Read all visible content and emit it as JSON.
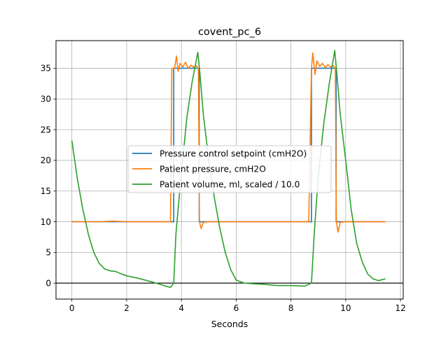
{
  "chart_data": {
    "type": "line",
    "title": "covent_pc_6",
    "xlabel": "Seconds",
    "ylabel": "",
    "xlim": [
      -0.58,
      12.1
    ],
    "ylim": [
      -2.6,
      39.5
    ],
    "xticks": [
      "0",
      "2",
      "4",
      "6",
      "8",
      "10",
      "12"
    ],
    "yticks": [
      "0",
      "5",
      "10",
      "15",
      "20",
      "25",
      "30",
      "35"
    ],
    "grid": true,
    "zero_line": true,
    "legend_position": "center",
    "series": [
      {
        "name": "Pressure control setpoint (cmH2O)",
        "color": "#1f77b4",
        "x": [
          0.0,
          3.6,
          3.6,
          3.72,
          3.72,
          4.6,
          4.6,
          4.65,
          4.65,
          5.5,
          8.6,
          8.6,
          8.75,
          8.75,
          9.6,
          9.6,
          9.65,
          9.65,
          11.45
        ],
        "y": [
          10,
          10,
          10,
          10,
          35,
          35,
          35,
          35,
          10,
          10,
          10,
          10,
          10,
          35,
          35,
          35,
          35,
          10,
          10
        ]
      },
      {
        "name": "Patient pressure, cmH2O",
        "color": "#ff7f0e",
        "x": [
          0.0,
          0.5,
          1.0,
          1.5,
          2.0,
          2.5,
          3.0,
          3.5,
          3.6,
          3.65,
          3.75,
          3.82,
          3.88,
          3.95,
          4.05,
          4.15,
          4.25,
          4.35,
          4.45,
          4.55,
          4.62,
          4.66,
          4.72,
          4.8,
          5.0,
          5.5,
          6.0,
          6.5,
          7.0,
          7.5,
          8.0,
          8.5,
          8.6,
          8.65,
          8.75,
          8.8,
          8.88,
          8.95,
          9.05,
          9.15,
          9.25,
          9.35,
          9.45,
          9.55,
          9.62,
          9.66,
          9.72,
          9.8,
          10.0,
          10.5,
          11.0,
          11.45
        ],
        "y": [
          10,
          10,
          10,
          10.1,
          10,
          10,
          10,
          10,
          10,
          35,
          35,
          37.0,
          34.5,
          35.8,
          35.2,
          36,
          35,
          35.5,
          35.2,
          35.4,
          35,
          10,
          8.9,
          9.9,
          10,
          10,
          10,
          10,
          10,
          10,
          10,
          10,
          10,
          10,
          35,
          37.5,
          34.0,
          36.2,
          35.3,
          35.8,
          35.1,
          35.6,
          35.2,
          35.4,
          35,
          10,
          8.3,
          9.9,
          10,
          10,
          10,
          10
        ]
      },
      {
        "name": "Patient volume, ml, scaled / 10.0",
        "color": "#2ca02c",
        "x": [
          0.0,
          0.2,
          0.4,
          0.6,
          0.8,
          1.0,
          1.2,
          1.4,
          1.6,
          1.8,
          2.0,
          2.5,
          3.0,
          3.3,
          3.6,
          3.72,
          3.8,
          4.0,
          4.2,
          4.4,
          4.6,
          4.68,
          4.8,
          5.0,
          5.2,
          5.4,
          5.6,
          5.8,
          6.0,
          6.3,
          6.6,
          7.0,
          7.5,
          8.0,
          8.5,
          8.75,
          8.85,
          9.0,
          9.2,
          9.4,
          9.6,
          9.68,
          9.8,
          10.0,
          10.2,
          10.4,
          10.6,
          10.8,
          11.0,
          11.2,
          11.45
        ],
        "y": [
          23.2,
          17.0,
          12.0,
          8.0,
          5.0,
          3.2,
          2.3,
          2.0,
          1.9,
          1.5,
          1.2,
          0.7,
          0.1,
          -0.3,
          -0.7,
          0.0,
          8.0,
          18.0,
          27.0,
          33.0,
          37.6,
          34.0,
          27.5,
          20.0,
          14.0,
          9.0,
          5.0,
          2.2,
          0.5,
          0.0,
          -0.1,
          -0.2,
          -0.4,
          -0.4,
          -0.5,
          0.0,
          8.0,
          17.5,
          26.0,
          32.5,
          37.9,
          34.0,
          27.5,
          20.0,
          12.0,
          6.5,
          3.5,
          1.5,
          0.7,
          0.4,
          0.7
        ]
      }
    ]
  }
}
